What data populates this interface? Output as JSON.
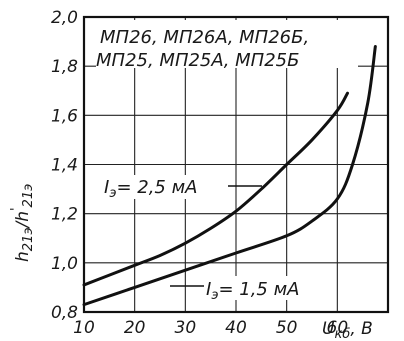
{
  "chart_data": {
    "type": "line",
    "device_types_line1": "МП26, МП26А, МП26Б,",
    "device_types_line2": "МП25, МП25А, МП25Б",
    "xlabel": "U",
    "xlabel_sub": "кб",
    "xlabel_unit": ", В",
    "ylabel": "h",
    "ylabel_sub": "21э",
    "ylabel_sep": "/",
    "ylabel_prime": "'",
    "ylabel2": "h",
    "ylabel2_sub": "21э",
    "xlim": [
      10,
      70
    ],
    "ylim": [
      0.8,
      2.0
    ],
    "x_ticks": [
      10,
      20,
      30,
      40,
      50,
      60
    ],
    "x_tick_labels": [
      "10",
      "20",
      "30",
      "40",
      "50",
      "60"
    ],
    "y_ticks": [
      0.8,
      1.0,
      1.2,
      1.4,
      1.6,
      1.8,
      2.0
    ],
    "y_tick_labels": [
      "0,8",
      "1,0",
      "1,2",
      "1,4",
      "1,6",
      "1,8",
      "2,0"
    ],
    "grid": true,
    "series": [
      {
        "name": "I_э = 2,5 мА",
        "label_main": "I",
        "label_sub": "э",
        "label_value": "= 2,5 мА",
        "x": [
          10,
          15,
          20,
          25,
          30,
          35,
          40,
          45,
          50,
          55,
          60,
          62
        ],
        "y": [
          0.91,
          0.95,
          0.99,
          1.03,
          1.08,
          1.14,
          1.21,
          1.3,
          1.4,
          1.5,
          1.62,
          1.69
        ]
      },
      {
        "name": "I_э = 1,5 мА",
        "label_main": "I",
        "label_sub": "э",
        "label_value": "= 1,5 мА",
        "x": [
          10,
          20,
          30,
          40,
          50,
          55,
          60,
          63,
          66,
          67.5
        ],
        "y": [
          0.83,
          0.9,
          0.97,
          1.04,
          1.11,
          1.17,
          1.26,
          1.4,
          1.65,
          1.88
        ]
      }
    ]
  }
}
